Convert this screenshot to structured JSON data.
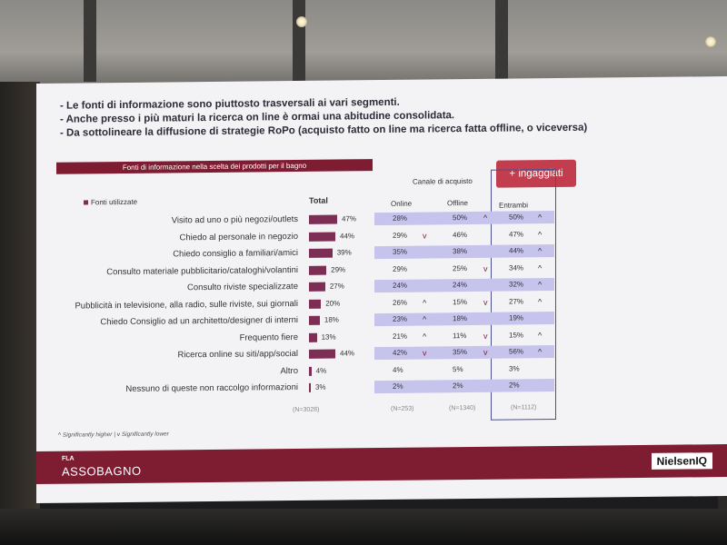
{
  "bullets": [
    "- Le fonti di informazione sono piuttosto trasversali ai vari segmenti.",
    "- Anche presso i più maturi la ricerca on line è ormai una abitudine consolidata.",
    "- Da sottolineare la diffusione di strategie RoPo (acquisto fatto on line ma ricerca fatta offline, o viceversa)"
  ],
  "banner": "Fonti di informazione nella scelta dei prodotti per il bagno",
  "engaged_badge": "+ ingaggiati",
  "headers": {
    "sources": "Fonti utilizzate",
    "total": "Total",
    "channel": "Canale di acquisto",
    "online": "Online",
    "offline": "Offline",
    "both": "Entrambi"
  },
  "rows": [
    {
      "label": "Visito ad uno o più negozi/outlets",
      "total": "47%",
      "total_value": 47,
      "online": "28%",
      "online_sig": "",
      "offline": "50%",
      "offline_sig": "up",
      "both": "50%",
      "both_sig": "up",
      "shaded": true
    },
    {
      "label": "Chiedo al personale in negozio",
      "total": "44%",
      "total_value": 44,
      "online": "29%",
      "online_sig": "down",
      "offline": "46%",
      "offline_sig": "",
      "both": "47%",
      "both_sig": "up",
      "shaded": false
    },
    {
      "label": "Chiedo consiglio a familiari/amici",
      "total": "39%",
      "total_value": 39,
      "online": "35%",
      "online_sig": "",
      "offline": "38%",
      "offline_sig": "",
      "both": "44%",
      "both_sig": "up",
      "shaded": true
    },
    {
      "label": "Consulto materiale pubblicitario/cataloghi/volantini",
      "total": "29%",
      "total_value": 29,
      "online": "29%",
      "online_sig": "",
      "offline": "25%",
      "offline_sig": "down",
      "both": "34%",
      "both_sig": "up",
      "shaded": false
    },
    {
      "label": "Consulto riviste specializzate",
      "total": "27%",
      "total_value": 27,
      "online": "24%",
      "online_sig": "",
      "offline": "24%",
      "offline_sig": "",
      "both": "32%",
      "both_sig": "up",
      "shaded": true
    },
    {
      "label": "Pubblicità in televisione, alla radio, sulle riviste, sui giornali",
      "total": "20%",
      "total_value": 20,
      "online": "26%",
      "online_sig": "up",
      "offline": "15%",
      "offline_sig": "down",
      "both": "27%",
      "both_sig": "up",
      "shaded": false
    },
    {
      "label": "Chiedo Consiglio ad un architetto/designer di interni",
      "total": "18%",
      "total_value": 18,
      "online": "23%",
      "online_sig": "up",
      "offline": "18%",
      "offline_sig": "",
      "both": "19%",
      "both_sig": "",
      "shaded": true
    },
    {
      "label": "Frequento fiere",
      "total": "13%",
      "total_value": 13,
      "online": "21%",
      "online_sig": "up",
      "offline": "11%",
      "offline_sig": "down",
      "both": "15%",
      "both_sig": "up",
      "shaded": false
    },
    {
      "label": "Ricerca online su siti/app/social",
      "total": "44%",
      "total_value": 44,
      "online": "42%",
      "online_sig": "down",
      "offline": "35%",
      "offline_sig": "down",
      "both": "56%",
      "both_sig": "up",
      "shaded": true
    },
    {
      "label": "Altro",
      "total": "4%",
      "total_value": 4,
      "online": "4%",
      "online_sig": "",
      "offline": "5%",
      "offline_sig": "",
      "both": "3%",
      "both_sig": "",
      "shaded": false
    },
    {
      "label": "Nessuno di queste non raccolgo informazioni",
      "total": "3%",
      "total_value": 3,
      "online": "2%",
      "online_sig": "",
      "offline": "2%",
      "offline_sig": "",
      "both": "2%",
      "both_sig": "",
      "shaded": true
    }
  ],
  "bases": {
    "total": "(N=3028)",
    "online": "(N=253)",
    "offline": "(N=1340)",
    "both": "(N=1112)"
  },
  "legend": {
    "higher": "Significantly higher",
    "lower": "Significantly lower",
    "separator": " | "
  },
  "footer": {
    "fla": "FLA",
    "brand": "ASSOBAGNO",
    "partner": "NielsenIQ"
  },
  "colors": {
    "bar": "#7e2d55",
    "banner": "#7e1c32",
    "shade": "#c6c4ec",
    "badge": "#c23d4e",
    "frame": "#4a4f8e"
  },
  "icons": {
    "up": "chevron-up-icon",
    "down": "chevron-down-icon",
    "bullet": "square-icon"
  }
}
